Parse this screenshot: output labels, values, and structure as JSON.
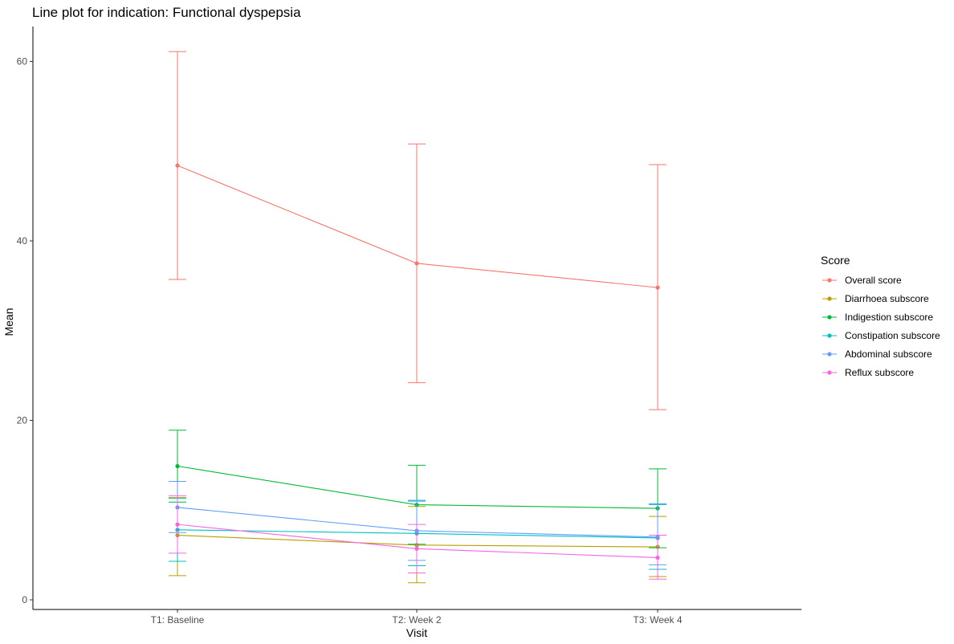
{
  "chart_data": {
    "type": "line",
    "title": "Line plot for indication: Functional dyspepsia",
    "xlabel": "Visit",
    "ylabel": "Mean",
    "categories": [
      "T1: Baseline",
      "T2: Week 2",
      "T3: Week 4"
    ],
    "yticks": [
      0,
      20,
      40,
      60
    ],
    "ylim": [
      -1,
      64
    ],
    "grid": false,
    "legend": {
      "title": "Score",
      "placement": "right"
    },
    "series": [
      {
        "name": "Overall score",
        "color": "#F8766D",
        "values": [
          48.4,
          37.5,
          34.8
        ],
        "lower": [
          35.7,
          24.2,
          21.2
        ],
        "upper": [
          61.1,
          50.8,
          48.5
        ]
      },
      {
        "name": "Diarrhoea subscore",
        "color": "#B79F00",
        "values": [
          7.2,
          6.1,
          5.9
        ],
        "lower": [
          2.7,
          1.9,
          2.6
        ],
        "upper": [
          11.4,
          10.4,
          9.3
        ]
      },
      {
        "name": "Indigestion subscore",
        "color": "#00BA38",
        "values": [
          14.9,
          10.6,
          10.2
        ],
        "lower": [
          10.9,
          6.2,
          5.8
        ],
        "upper": [
          18.9,
          15.0,
          14.6
        ]
      },
      {
        "name": "Constipation subscore",
        "color": "#00BFC4",
        "values": [
          7.8,
          7.4,
          6.9
        ],
        "lower": [
          4.3,
          3.8,
          3.4
        ],
        "upper": [
          11.3,
          11.0,
          10.7
        ]
      },
      {
        "name": "Abdominal subscore",
        "color": "#619CFF",
        "values": [
          10.3,
          7.7,
          7.0
        ],
        "lower": [
          7.5,
          4.4,
          3.9
        ],
        "upper": [
          13.2,
          11.1,
          10.6
        ]
      },
      {
        "name": "Reflux subscore",
        "color": "#F564E3",
        "values": [
          8.4,
          5.7,
          4.7
        ],
        "lower": [
          5.2,
          3.0,
          2.3
        ],
        "upper": [
          11.6,
          8.4,
          7.2
        ]
      }
    ]
  }
}
